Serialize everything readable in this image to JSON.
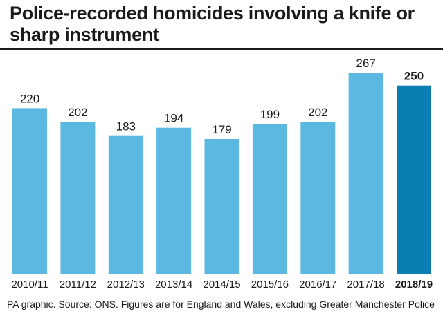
{
  "title": "Police-recorded homicides involving a knife or sharp instrument",
  "source": "PA graphic. Source: ONS. Figures are for England and Wales, excluding Greater Manchester Police",
  "colors": {
    "bar": "#5ab8e1",
    "highlight": "#0a7db3",
    "axis": "#1a1a1a"
  },
  "chart_data": {
    "type": "bar",
    "title": "Police-recorded homicides involving a knife or sharp instrument",
    "xlabel": "",
    "ylabel": "",
    "categories": [
      "2010/11",
      "2011/12",
      "2012/13",
      "2013/14",
      "2014/15",
      "2015/16",
      "2016/17",
      "2017/18",
      "2018/19"
    ],
    "values": [
      220,
      202,
      183,
      194,
      179,
      199,
      202,
      267,
      250
    ],
    "highlight_category": "2018/19",
    "ylim": [
      0,
      280
    ],
    "grid": false,
    "legend": "none"
  }
}
